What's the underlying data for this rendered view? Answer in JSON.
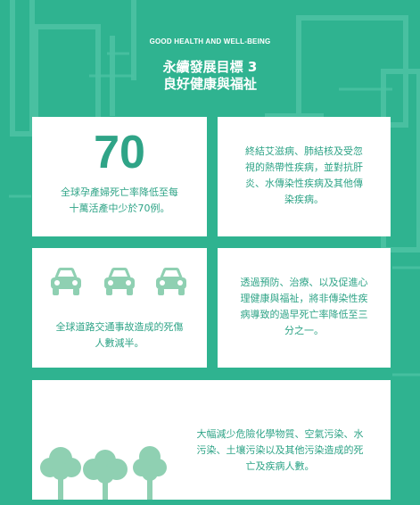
{
  "header": {
    "english_title": "GOOD HEALTH AND WELL-BEING",
    "title_line1": "永續發展目標 3",
    "title_line2": "良好健康與福祉"
  },
  "cards": {
    "maternal": {
      "number": "70",
      "text_line1": "全球孕產婦死亡率降低至每",
      "text_line2": "十萬活產中少於70例。"
    },
    "epidemics": {
      "text_line1": "終結艾滋病、肺結核及受忽",
      "text_line2": "視的熱帶性疾病，並對抗肝",
      "text_line3": "炎、水傳染性疾病及其他傳",
      "text_line4": "染疾病。"
    },
    "road": {
      "icons": [
        "car-icon",
        "car-icon",
        "car-icon"
      ],
      "text_line1": "全球道路交通事故造成的死傷",
      "text_line2": "人數減半。"
    },
    "ncd": {
      "text_line1": "透過預防、治療、以及促進心",
      "text_line2": "理健康與福祉，將非傳染性疾",
      "text_line3": "病導致的過早死亡率降低至三",
      "text_line4": "分之一。"
    },
    "pollution": {
      "icons": [
        "tree-icon",
        "tree-icon",
        "tree-icon"
      ],
      "text_line1": "大幅減少危險化學物質、空氣污染、水",
      "text_line2": "污染、土壤污染以及其他污染造成的死",
      "text_line3": "亡及疾病人數。"
    }
  },
  "colors": {
    "background": "#2fb390",
    "card": "#ffffff",
    "accent_text": "#2fa487",
    "icon": "#8fd0b2"
  }
}
